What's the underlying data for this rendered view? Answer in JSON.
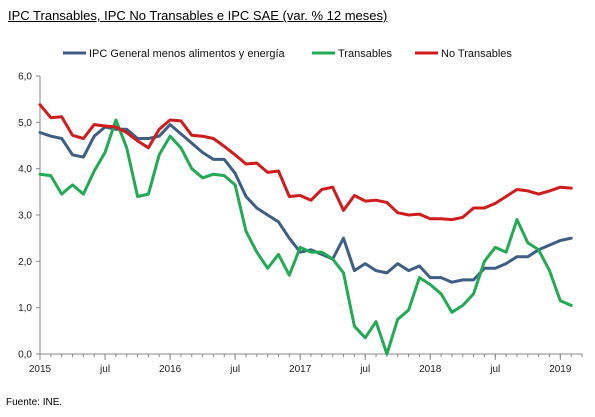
{
  "title": "IPC Transables, IPC No Transables e IPC SAE (var. % 12 meses)",
  "source": "Fuente: INE.",
  "chart_data": {
    "type": "line",
    "title": "IPC Transables, IPC No Transables e IPC SAE (var. % 12 meses)",
    "ylim": [
      0,
      6
    ],
    "yticks": [
      "0,0",
      "1,0",
      "2,0",
      "3,0",
      "4,0",
      "5,0",
      "6,0"
    ],
    "x_range": [
      "2015-01",
      "2019-03"
    ],
    "x_ticks": [
      {
        "label": "2015",
        "month": "2015-01"
      },
      {
        "label": "jul",
        "month": "2015-07"
      },
      {
        "label": "2016",
        "month": "2016-01"
      },
      {
        "label": "jul",
        "month": "2016-07"
      },
      {
        "label": "2017",
        "month": "2017-01"
      },
      {
        "label": "jul",
        "month": "2017-07"
      },
      {
        "label": "2018",
        "month": "2018-01"
      },
      {
        "label": "jul",
        "month": "2018-07"
      },
      {
        "label": "2019",
        "month": "2019-01"
      }
    ],
    "grid": false,
    "legend_position": "top",
    "series": [
      {
        "name": "IPC General menos alimentos y energía",
        "color": "#3f5e85",
        "values": [
          4.78,
          4.7,
          4.65,
          4.3,
          4.25,
          4.7,
          4.9,
          4.85,
          4.85,
          4.65,
          4.65,
          4.7,
          4.95,
          4.75,
          4.55,
          4.35,
          4.2,
          4.2,
          3.9,
          3.4,
          3.15,
          3.0,
          2.85,
          2.5,
          2.2,
          2.25,
          2.15,
          2.05,
          2.5,
          1.8,
          1.95,
          1.8,
          1.75,
          1.95,
          1.8,
          1.9,
          1.65,
          1.65,
          1.55,
          1.6,
          1.6,
          1.85,
          1.85,
          1.95,
          2.1,
          2.1,
          2.25,
          2.35,
          2.45,
          2.5
        ]
      },
      {
        "name": "Transables",
        "color": "#22aa55",
        "values": [
          3.88,
          3.85,
          3.45,
          3.65,
          3.45,
          3.95,
          4.35,
          5.05,
          4.45,
          3.4,
          3.45,
          4.3,
          4.7,
          4.45,
          4.0,
          3.8,
          3.88,
          3.85,
          3.65,
          2.65,
          2.2,
          1.85,
          2.15,
          1.7,
          2.3,
          2.2,
          2.2,
          2.05,
          1.75,
          0.6,
          0.35,
          0.7,
          0.0,
          0.75,
          0.95,
          1.65,
          1.5,
          1.3,
          0.9,
          1.05,
          1.3,
          2.0,
          2.3,
          2.2,
          2.9,
          2.4,
          2.25,
          1.8,
          1.15,
          1.05
        ]
      },
      {
        "name": "No Transables",
        "color": "#d01c1c",
        "values": [
          5.38,
          5.1,
          5.12,
          4.72,
          4.65,
          4.95,
          4.92,
          4.9,
          4.78,
          4.6,
          4.45,
          4.85,
          5.05,
          5.03,
          4.72,
          4.7,
          4.65,
          4.48,
          4.3,
          4.1,
          4.12,
          3.92,
          3.95,
          3.4,
          3.42,
          3.32,
          3.55,
          3.6,
          3.1,
          3.42,
          3.3,
          3.32,
          3.27,
          3.05,
          3.0,
          3.02,
          2.92,
          2.92,
          2.9,
          2.95,
          3.15,
          3.15,
          3.25,
          3.4,
          3.55,
          3.52,
          3.45,
          3.52,
          3.6,
          3.58
        ]
      }
    ]
  }
}
